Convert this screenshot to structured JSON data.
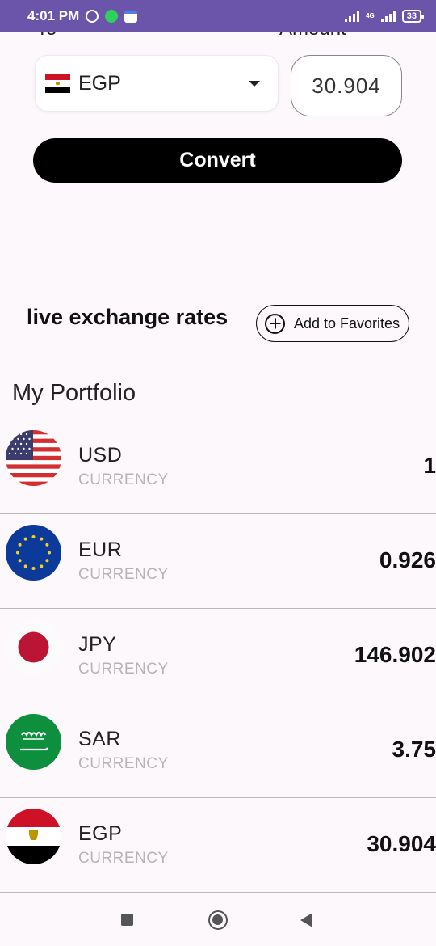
{
  "status_bar": {
    "time": "4:01 PM",
    "network": "4G",
    "battery": "33"
  },
  "converter": {
    "to_label": "To",
    "amount_label": "Amount",
    "selected_currency": "EGP",
    "selected_flag": "egypt-flag",
    "amount_value": "30.904",
    "convert_label": "Convert"
  },
  "live_rates": {
    "title": "live exchange rates",
    "add_favorites_label": "Add to Favorites"
  },
  "portfolio": {
    "title": "My Portfolio",
    "items": [
      {
        "code": "USD",
        "type": "CURRENCY",
        "rate": "1",
        "flag": "usa-flag"
      },
      {
        "code": "EUR",
        "type": "CURRENCY",
        "rate": "0.926",
        "flag": "eu-flag"
      },
      {
        "code": "JPY",
        "type": "CURRENCY",
        "rate": "146.902",
        "flag": "japan-flag"
      },
      {
        "code": "SAR",
        "type": "CURRENCY",
        "rate": "3.75",
        "flag": "saudi-flag"
      },
      {
        "code": "EGP",
        "type": "CURRENCY",
        "rate": "30.904",
        "flag": "egypt-flag"
      }
    ]
  },
  "colors": {
    "status_bar": "#6a55ab",
    "background": "#fdf8fc",
    "convert_button": "#000000",
    "secondary_text": "#b5b5b5"
  }
}
